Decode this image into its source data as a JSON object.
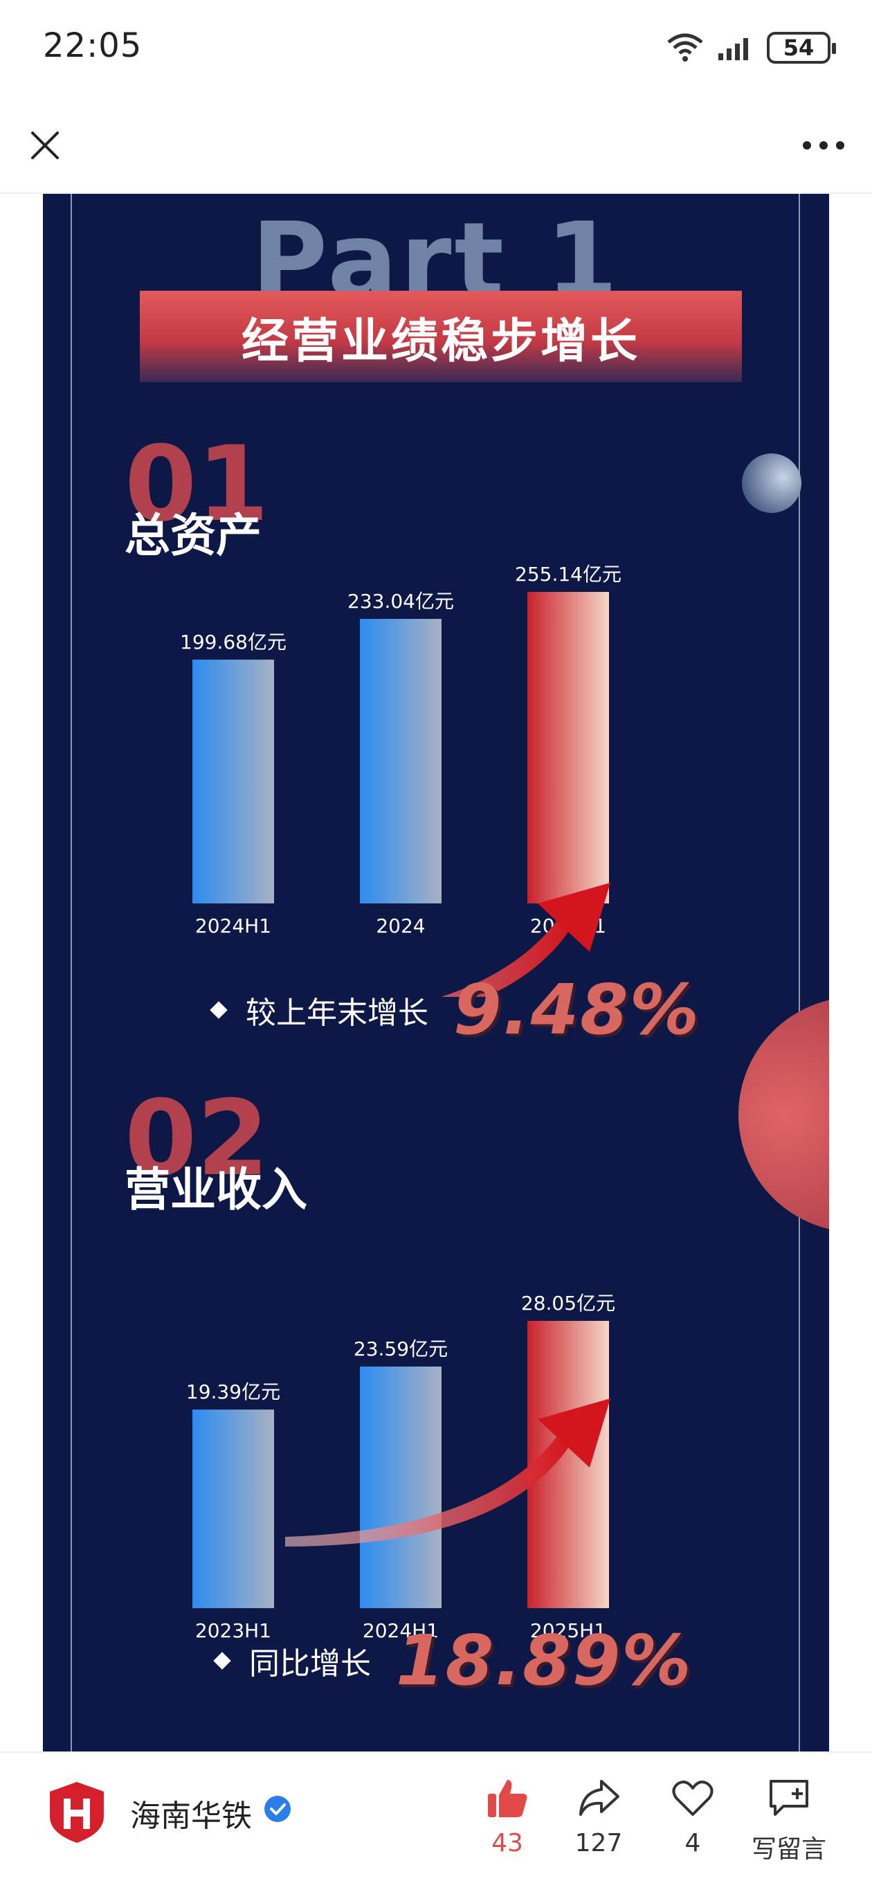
{
  "status_bar": {
    "time": "22:05",
    "battery": "54"
  },
  "poster": {
    "part_label": "Part 1",
    "banner": "经营业绩稳步增长",
    "sections": [
      {
        "number": "01",
        "title": "总资产",
        "growth_label": "较上年末增长",
        "growth_value": "9.48%"
      },
      {
        "number": "02",
        "title": "营业收入",
        "growth_label": "同比增长",
        "growth_value": "18.89%"
      }
    ]
  },
  "chart_data": [
    {
      "type": "bar",
      "categories": [
        "2024H1",
        "2024",
        "2025H1"
      ],
      "values": [
        199.68,
        233.04,
        255.14
      ],
      "data_labels": [
        "199.68亿元",
        "233.04亿元",
        "255.14亿元"
      ],
      "unit": "亿元",
      "highlight_color": "#c8232c",
      "base_color": "#2d8cf0"
    },
    {
      "type": "bar",
      "categories": [
        "2023H1",
        "2024H1",
        "2025H1"
      ],
      "values": [
        19.39,
        23.59,
        28.05
      ],
      "data_labels": [
        "19.39亿元",
        "23.59亿元",
        "28.05亿元"
      ],
      "unit": "亿元",
      "highlight_color": "#c8232c",
      "base_color": "#2d8cf0"
    }
  ],
  "bottom_bar": {
    "brand": "海南华铁",
    "like_count": "43",
    "share_count": "127",
    "fav_count": "4",
    "comment_label": "写留言"
  },
  "colors": {
    "poster_bg": "#0d1847",
    "accent_red": "#d8685f",
    "like_red": "#e24a4a"
  }
}
